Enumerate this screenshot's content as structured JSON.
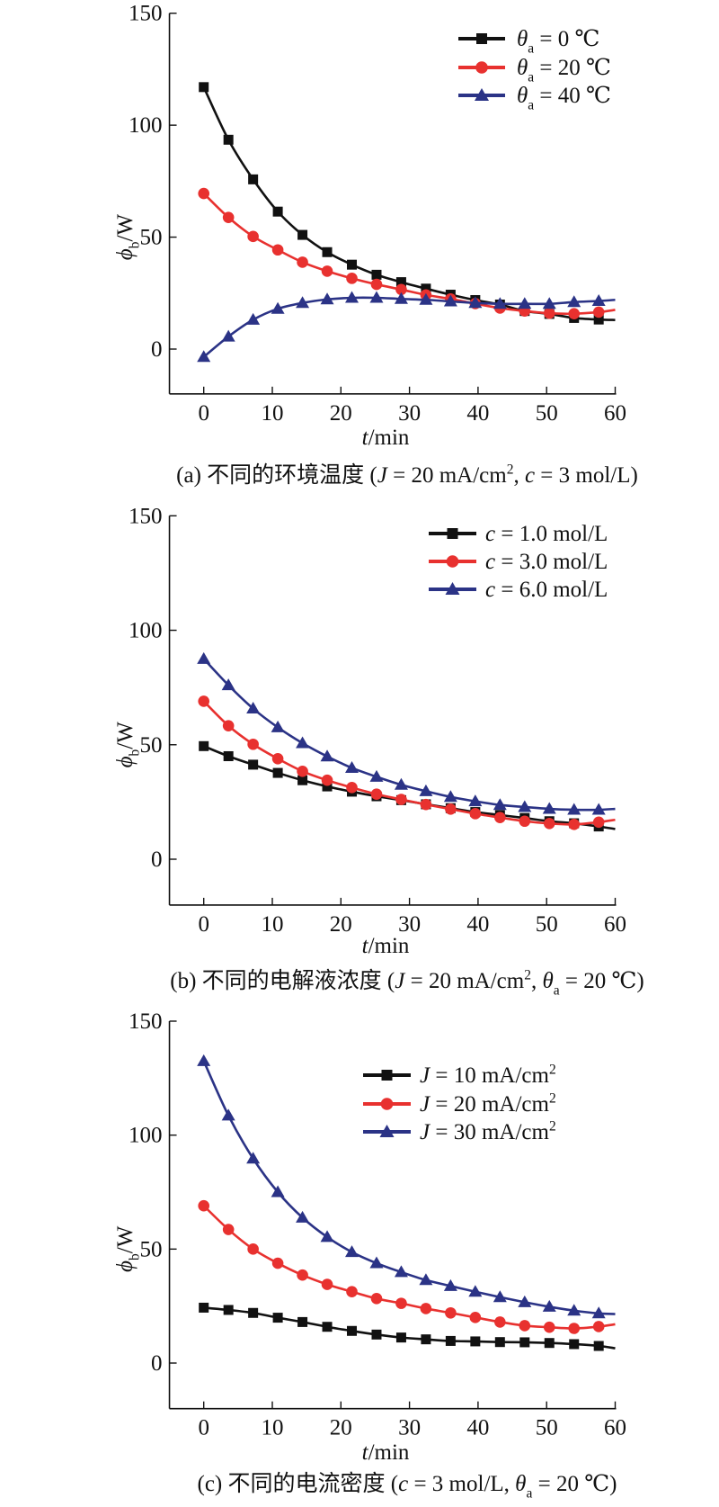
{
  "chart_data": [
    {
      "type": "line",
      "id": "a",
      "xlabel": {
        "parts": [
          {
            "t": "t",
            "i": true
          },
          {
            "t": "/min"
          }
        ]
      },
      "ylabel": {
        "parts": [
          {
            "t": "ϕ",
            "i": true
          },
          {
            "t": "b",
            "sub": true
          },
          {
            "t": "/W"
          }
        ]
      },
      "caption": {
        "parts": [
          {
            "t": "(a) 不同的环境温度 ("
          },
          {
            "t": "J",
            "i": true
          },
          {
            "t": " = 20 mA/cm"
          },
          {
            "t": "2",
            "sup": true
          },
          {
            "t": ", "
          },
          {
            "t": "c",
            "i": true
          },
          {
            "t": " = 3 mol/L)"
          }
        ]
      },
      "xlim": [
        -5,
        60
      ],
      "ylim": [
        -20,
        150
      ],
      "xticks": [
        "0",
        "10",
        "20",
        "30",
        "40",
        "50",
        "60"
      ],
      "yticks": [
        "0",
        "50",
        "100",
        "150"
      ],
      "legend_position": "top-right",
      "x": [
        0,
        3.6,
        7.2,
        10.8,
        14.4,
        18,
        21.6,
        25.2,
        28.8,
        32.4,
        36,
        39.6,
        43.2,
        46.8,
        50.4,
        54,
        57.6
      ],
      "series": [
        {
          "legend": [
            {
              "t": "θ",
              "i": true
            },
            {
              "t": "a",
              "sub": true
            },
            {
              "t": " = 0 ℃"
            }
          ],
          "color": "#111111",
          "marker": "square",
          "values": [
            117,
            93.5,
            75.8,
            61.4,
            51,
            43.3,
            37.7,
            33.2,
            29.9,
            27,
            24.3,
            21.9,
            19.9,
            17,
            15.7,
            13.9,
            13.2
          ],
          "value_at_60": 13
        },
        {
          "legend": [
            {
              "t": "θ",
              "i": true
            },
            {
              "t": "a",
              "sub": true
            },
            {
              "t": " = 20 ℃"
            }
          ],
          "color": "#e8312f",
          "marker": "circle",
          "values": [
            69.5,
            58.8,
            50.3,
            44.3,
            38.8,
            34.8,
            31.6,
            28.9,
            26.6,
            24.2,
            22.4,
            20.3,
            18.3,
            17,
            16,
            15.8,
            16.5
          ],
          "value_at_60": 17.5
        },
        {
          "legend": [
            {
              "t": "θ",
              "i": true
            },
            {
              "t": "a",
              "sub": true
            },
            {
              "t": " = 40 ℃"
            }
          ],
          "color": "#2b3386",
          "marker": "triangle",
          "values": [
            -3.5,
            5.6,
            13.1,
            18,
            20.6,
            22.2,
            22.9,
            22.9,
            22.4,
            22,
            21.3,
            20.6,
            20.2,
            20.2,
            20.2,
            21,
            21.5
          ],
          "value_at_60": 22
        }
      ]
    },
    {
      "type": "line",
      "id": "b",
      "xlabel": {
        "parts": [
          {
            "t": "t",
            "i": true
          },
          {
            "t": "/min"
          }
        ]
      },
      "ylabel": {
        "parts": [
          {
            "t": "ϕ",
            "i": true
          },
          {
            "t": "b",
            "sub": true
          },
          {
            "t": "/W"
          }
        ]
      },
      "caption": {
        "parts": [
          {
            "t": "(b) 不同的电解液浓度 ("
          },
          {
            "t": "J",
            "i": true
          },
          {
            "t": " = 20 mA/cm"
          },
          {
            "t": "2",
            "sup": true
          },
          {
            "t": ", "
          },
          {
            "t": "θ",
            "i": true
          },
          {
            "t": "a",
            "sub": true
          },
          {
            "t": " = 20 ℃)"
          }
        ]
      },
      "xlim": [
        -5,
        60
      ],
      "ylim": [
        -20,
        150
      ],
      "xticks": [
        "0",
        "10",
        "20",
        "30",
        "40",
        "50",
        "60"
      ],
      "yticks": [
        "0",
        "50",
        "100",
        "150"
      ],
      "legend_position": "top-right",
      "x": [
        0,
        3.6,
        7.2,
        10.8,
        14.4,
        18,
        21.6,
        25.2,
        28.8,
        32.4,
        36,
        39.6,
        43.2,
        46.8,
        50.4,
        54,
        57.6
      ],
      "series": [
        {
          "legend": [
            {
              "t": "c",
              "i": true
            },
            {
              "t": " = 1.0 mol/L"
            }
          ],
          "color": "#111111",
          "marker": "square",
          "values": [
            49.4,
            45,
            41.3,
            37.7,
            34.5,
            31.8,
            29.5,
            27.5,
            25.8,
            24,
            22.3,
            20.6,
            19.3,
            18,
            16.6,
            15.7,
            14.3
          ],
          "value_at_60": 13.2
        },
        {
          "legend": [
            {
              "t": "c",
              "i": true
            },
            {
              "t": " = 3.0 mol/L"
            }
          ],
          "color": "#e8312f",
          "marker": "circle",
          "values": [
            69,
            58.3,
            50.2,
            43.9,
            38.4,
            34.5,
            31.3,
            28.4,
            26.1,
            23.9,
            21.9,
            19.9,
            18.2,
            16.6,
            15.6,
            15.2,
            16.2
          ],
          "value_at_60": 17.2
        },
        {
          "legend": [
            {
              "t": "c",
              "i": true
            },
            {
              "t": " = 6.0 mol/L"
            }
          ],
          "color": "#2b3386",
          "marker": "triangle",
          "values": [
            87.5,
            76,
            65.8,
            57.6,
            50.7,
            44.9,
            39.9,
            36,
            32.5,
            29.7,
            27.2,
            25.3,
            23.7,
            22.8,
            22,
            21.6,
            21.6
          ],
          "value_at_60": 22
        }
      ]
    },
    {
      "type": "line",
      "id": "c",
      "xlabel": {
        "parts": [
          {
            "t": "t",
            "i": true
          },
          {
            "t": "/min"
          }
        ]
      },
      "ylabel": {
        "parts": [
          {
            "t": "ϕ",
            "i": true
          },
          {
            "t": "b",
            "sub": true
          },
          {
            "t": "/W"
          }
        ]
      },
      "caption": {
        "parts": [
          {
            "t": "(c) 不同的电流密度 ("
          },
          {
            "t": "c",
            "i": true
          },
          {
            "t": " = 3 mol/L, "
          },
          {
            "t": "θ",
            "i": true
          },
          {
            "t": "a",
            "sub": true
          },
          {
            "t": " = 20 ℃)"
          }
        ]
      },
      "xlim": [
        -5,
        60
      ],
      "ylim": [
        -20,
        150
      ],
      "xticks": [
        "0",
        "10",
        "20",
        "30",
        "40",
        "50",
        "60"
      ],
      "yticks": [
        "0",
        "50",
        "100",
        "150"
      ],
      "legend_position": "top-right",
      "x": [
        0,
        3.6,
        7.2,
        10.8,
        14.4,
        18,
        21.6,
        25.2,
        28.8,
        32.4,
        36,
        39.6,
        43.2,
        46.8,
        50.4,
        54,
        57.6
      ],
      "series": [
        {
          "legend": [
            {
              "t": "J",
              "i": true
            },
            {
              "t": " = 10 mA/cm"
            },
            {
              "t": "2",
              "sup": true
            }
          ],
          "color": "#111111",
          "marker": "square",
          "values": [
            24.3,
            23.3,
            22,
            19.9,
            18,
            15.9,
            14.1,
            12.5,
            11.2,
            10.4,
            9.7,
            9.5,
            9.2,
            9.1,
            8.8,
            8.3,
            7.5
          ],
          "value_at_60": 6.5
        },
        {
          "legend": [
            {
              "t": "J",
              "i": true
            },
            {
              "t": " = 20 mA/cm"
            },
            {
              "t": "2",
              "sup": true
            }
          ],
          "color": "#e8312f",
          "marker": "circle",
          "values": [
            69,
            58.6,
            50,
            43.8,
            38.6,
            34.5,
            31.3,
            28.3,
            26.2,
            23.9,
            22,
            20,
            18,
            16.4,
            15.7,
            15.2,
            16
          ],
          "value_at_60": 17
        },
        {
          "legend": [
            {
              "t": "J",
              "i": true
            },
            {
              "t": " = 30 mA/cm"
            },
            {
              "t": "2",
              "sup": true
            }
          ],
          "color": "#2b3386",
          "marker": "triangle",
          "values": [
            132.5,
            108.6,
            89.7,
            75,
            63.8,
            55.3,
            48.7,
            43.8,
            39.9,
            36.4,
            33.8,
            31.3,
            28.9,
            26.7,
            24.7,
            23,
            21.8
          ],
          "value_at_60": 21.5
        }
      ]
    }
  ]
}
